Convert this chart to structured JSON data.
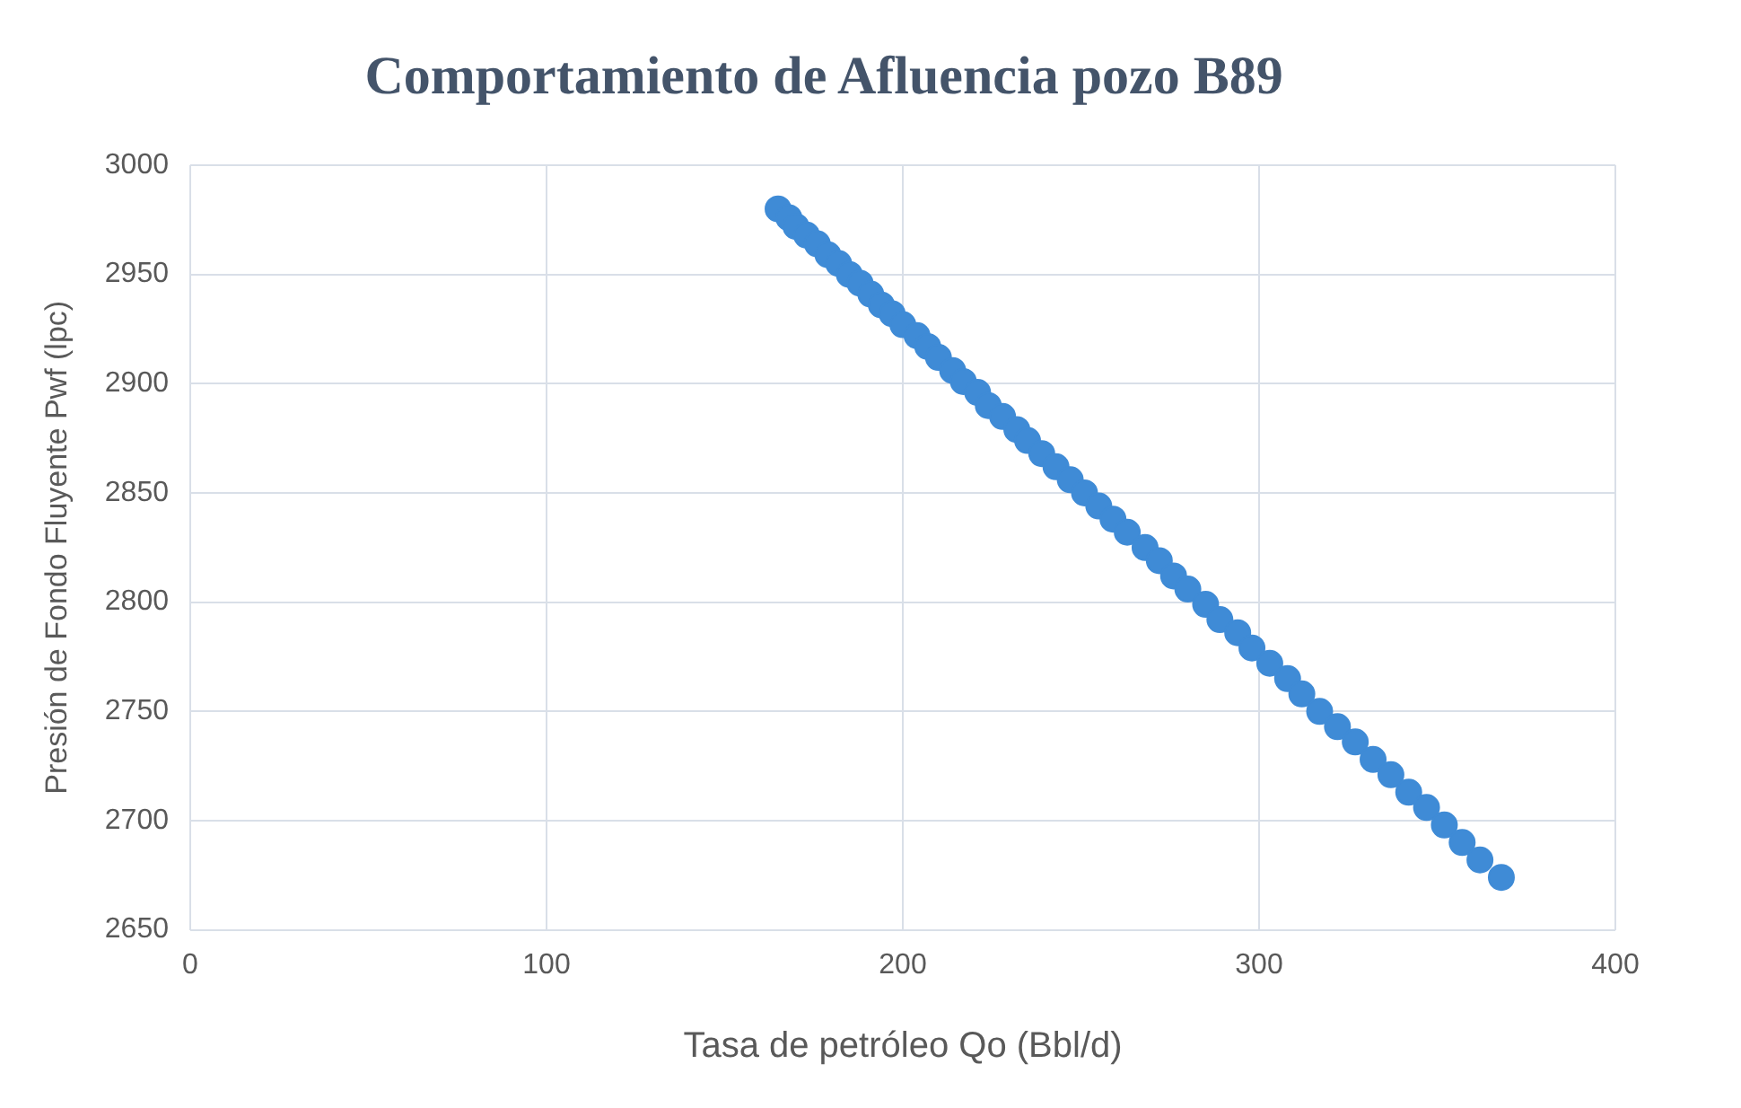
{
  "chart_data": {
    "type": "scatter",
    "title": "Comportamiento de Afluencia pozo B89",
    "xlabel": "Tasa de petróleo Qo (Bbl/d)",
    "ylabel": "Presión de Fondo Fluyente Pwf (lpc)",
    "x": [
      165,
      168,
      170,
      173,
      176,
      179,
      182,
      185,
      188,
      191,
      194,
      197,
      200,
      204,
      207,
      210,
      214,
      217,
      221,
      224,
      228,
      232,
      235,
      239,
      243,
      247,
      251,
      255,
      259,
      263,
      268,
      272,
      276,
      280,
      285,
      289,
      294,
      298,
      303,
      308,
      312,
      317,
      322,
      327,
      332,
      337,
      342,
      347,
      352,
      357,
      362,
      368
    ],
    "series": [
      {
        "color": "#3f8bd6",
        "values": [
          2980,
          2976,
          2972,
          2968,
          2964,
          2959,
          2955,
          2950,
          2946,
          2941,
          2936,
          2932,
          2927,
          2922,
          2917,
          2912,
          2906,
          2901,
          2896,
          2890,
          2885,
          2879,
          2874,
          2868,
          2862,
          2856,
          2850,
          2844,
          2838,
          2832,
          2825,
          2819,
          2812,
          2806,
          2799,
          2792,
          2786,
          2779,
          2772,
          2765,
          2758,
          2750,
          2743,
          2736,
          2728,
          2721,
          2713,
          2706,
          2698,
          2690,
          2682,
          2674
        ]
      }
    ],
    "xlim": [
      0,
      400
    ],
    "xticks": [
      0,
      100,
      200,
      300,
      400
    ],
    "ylim": [
      2650,
      3000
    ],
    "yticks": [
      2650,
      2700,
      2750,
      2800,
      2850,
      2900,
      2950,
      3000
    ],
    "grid": true,
    "legend": false,
    "marker": "circle"
  }
}
